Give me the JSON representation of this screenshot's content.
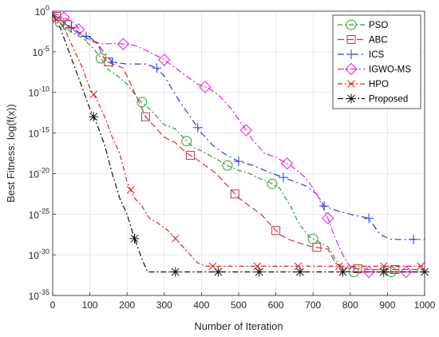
{
  "chart_data": {
    "type": "line",
    "title": "",
    "xlabel": "Number of Iteration",
    "ylabel": "Best Fitness: log(f(x))",
    "xlim": [
      0,
      1000
    ],
    "ylim_log10": [
      -35,
      0
    ],
    "y_scale": "log",
    "grid": true,
    "legend_position": "top-right",
    "x_ticks": [
      {
        "value": 0,
        "label": "0"
      },
      {
        "value": 100,
        "label": "100"
      },
      {
        "value": 200,
        "label": "200"
      },
      {
        "value": 300,
        "label": "300"
      },
      {
        "value": 400,
        "label": "400"
      },
      {
        "value": 500,
        "label": "500"
      },
      {
        "value": 600,
        "label": "600"
      },
      {
        "value": 700,
        "label": "700"
      },
      {
        "value": 800,
        "label": "800"
      },
      {
        "value": 900,
        "label": "900"
      },
      {
        "value": 1000,
        "label": "1000"
      }
    ],
    "y_ticks": [
      {
        "exp": 0,
        "base": "10",
        "sup": "0"
      },
      {
        "exp": -5,
        "base": "10",
        "sup": "-5"
      },
      {
        "exp": -10,
        "base": "10",
        "sup": "-10"
      },
      {
        "exp": -15,
        "base": "10",
        "sup": "-15"
      },
      {
        "exp": -20,
        "base": "10",
        "sup": "-20"
      },
      {
        "exp": -25,
        "base": "10",
        "sup": "-25"
      },
      {
        "exp": -30,
        "base": "10",
        "sup": "-30"
      },
      {
        "exp": -35,
        "base": "10",
        "sup": "-35"
      }
    ],
    "series": [
      {
        "name": "PSO",
        "color": "#2ca02c",
        "dash": "6,3,2,3",
        "marker": "circle",
        "points": [
          [
            0,
            -0.3
          ],
          [
            20,
            -1.4
          ],
          [
            50,
            -2.6
          ],
          [
            80,
            -3.3
          ],
          [
            110,
            -4.6
          ],
          [
            130,
            -5.8
          ],
          [
            150,
            -7.2
          ],
          [
            170,
            -7.8
          ],
          [
            200,
            -9.0
          ],
          [
            230,
            -10.8
          ],
          [
            260,
            -12.0
          ],
          [
            280,
            -13.0
          ],
          [
            300,
            -14.0
          ],
          [
            330,
            -14.5
          ],
          [
            360,
            -16.0
          ],
          [
            380,
            -16.8
          ],
          [
            400,
            -17.2
          ],
          [
            440,
            -18.2
          ],
          [
            470,
            -19.0
          ],
          [
            500,
            -19.6
          ],
          [
            530,
            -20.0
          ],
          [
            550,
            -20.5
          ],
          [
            580,
            -21.0
          ],
          [
            610,
            -21.8
          ],
          [
            640,
            -24.0
          ],
          [
            660,
            -26.0
          ],
          [
            690,
            -27.8
          ],
          [
            720,
            -28.5
          ],
          [
            740,
            -29.0
          ],
          [
            760,
            -30.5
          ],
          [
            780,
            -31.8
          ],
          [
            800,
            -32.1
          ],
          [
            850,
            -32.1
          ],
          [
            900,
            -32.1
          ],
          [
            1000,
            -32.1
          ]
        ],
        "marker_x": [
          20,
          130,
          240,
          360,
          470,
          590,
          700,
          810,
          910
        ]
      },
      {
        "name": "ABC",
        "color": "#c8324a",
        "dash": "8,4",
        "marker": "square",
        "points": [
          [
            0,
            -0.3
          ],
          [
            20,
            -1.0
          ],
          [
            50,
            -2.0
          ],
          [
            80,
            -3.0
          ],
          [
            100,
            -3.5
          ],
          [
            120,
            -4.0
          ],
          [
            140,
            -6.0
          ],
          [
            160,
            -6.5
          ],
          [
            190,
            -7.0
          ],
          [
            210,
            -9.0
          ],
          [
            230,
            -11.0
          ],
          [
            250,
            -13.0
          ],
          [
            270,
            -14.0
          ],
          [
            300,
            -15.5
          ],
          [
            330,
            -16.2
          ],
          [
            360,
            -17.5
          ],
          [
            380,
            -18.0
          ],
          [
            410,
            -19.0
          ],
          [
            440,
            -20.0
          ],
          [
            470,
            -21.5
          ],
          [
            500,
            -23.0
          ],
          [
            530,
            -24.0
          ],
          [
            560,
            -25.0
          ],
          [
            590,
            -26.5
          ],
          [
            610,
            -27.5
          ],
          [
            640,
            -28.2
          ],
          [
            680,
            -28.8
          ],
          [
            700,
            -29.0
          ],
          [
            740,
            -29.3
          ],
          [
            760,
            -31.0
          ],
          [
            780,
            -31.6
          ],
          [
            850,
            -31.8
          ],
          [
            1000,
            -31.8
          ]
        ],
        "marker_x": [
          10,
          40,
          150,
          250,
          370,
          490,
          600,
          710,
          820,
          920
        ]
      },
      {
        "name": "ICS",
        "color": "#1f3fd6",
        "dash": "8,4,2,4",
        "marker": "plus",
        "points": [
          [
            0,
            -0.4
          ],
          [
            20,
            -1.0
          ],
          [
            40,
            -1.8
          ],
          [
            60,
            -2.2
          ],
          [
            80,
            -3.0
          ],
          [
            100,
            -3.2
          ],
          [
            120,
            -4.0
          ],
          [
            160,
            -6.3
          ],
          [
            200,
            -6.5
          ],
          [
            250,
            -6.5
          ],
          [
            280,
            -7.0
          ],
          [
            300,
            -8.0
          ],
          [
            320,
            -9.5
          ],
          [
            340,
            -11.0
          ],
          [
            370,
            -13.0
          ],
          [
            400,
            -15.0
          ],
          [
            430,
            -16.5
          ],
          [
            460,
            -17.5
          ],
          [
            500,
            -18.5
          ],
          [
            540,
            -19.0
          ],
          [
            580,
            -19.8
          ],
          [
            610,
            -20.3
          ],
          [
            640,
            -20.8
          ],
          [
            680,
            -21.5
          ],
          [
            710,
            -22.5
          ],
          [
            730,
            -24.0
          ],
          [
            760,
            -24.5
          ],
          [
            800,
            -25.0
          ],
          [
            850,
            -25.5
          ],
          [
            880,
            -27.5
          ],
          [
            910,
            -28.1
          ],
          [
            1000,
            -28.1
          ]
        ],
        "marker_x": [
          50,
          90,
          160,
          280,
          390,
          500,
          620,
          730,
          850,
          970
        ]
      },
      {
        "name": "IGWO-MS",
        "color": "#e020e0",
        "dash": "8,3,2,3",
        "marker": "diamond",
        "points": [
          [
            0,
            -0.2
          ],
          [
            30,
            -0.8
          ],
          [
            60,
            -1.5
          ],
          [
            80,
            -3.0
          ],
          [
            100,
            -3.5
          ],
          [
            130,
            -4.0
          ],
          [
            180,
            -4.0
          ],
          [
            220,
            -4.2
          ],
          [
            260,
            -5.0
          ],
          [
            300,
            -6.0
          ],
          [
            330,
            -7.0
          ],
          [
            360,
            -8.0
          ],
          [
            390,
            -9.0
          ],
          [
            420,
            -9.5
          ],
          [
            450,
            -10.5
          ],
          [
            480,
            -12.0
          ],
          [
            510,
            -14.0
          ],
          [
            540,
            -16.0
          ],
          [
            570,
            -17.5
          ],
          [
            600,
            -18.0
          ],
          [
            640,
            -19.0
          ],
          [
            680,
            -20.5
          ],
          [
            710,
            -22.5
          ],
          [
            740,
            -25.5
          ],
          [
            760,
            -28.0
          ],
          [
            780,
            -30.0
          ],
          [
            800,
            -31.5
          ],
          [
            820,
            -32.1
          ],
          [
            900,
            -32.1
          ],
          [
            1000,
            -32.1
          ]
        ],
        "marker_x": [
          30,
          70,
          190,
          300,
          410,
          520,
          630,
          740,
          850,
          950
        ]
      },
      {
        "name": "HPO",
        "color": "#e02020",
        "dash": "6,3,2,3",
        "marker": "x",
        "points": [
          [
            0,
            -0.5
          ],
          [
            30,
            -2.0
          ],
          [
            60,
            -5.0
          ],
          [
            80,
            -7.0
          ],
          [
            100,
            -9.5
          ],
          [
            120,
            -11.0
          ],
          [
            140,
            -13.0
          ],
          [
            160,
            -15.5
          ],
          [
            180,
            -17.5
          ],
          [
            200,
            -21.0
          ],
          [
            220,
            -23.0
          ],
          [
            240,
            -24.0
          ],
          [
            260,
            -25.5
          ],
          [
            280,
            -26.0
          ],
          [
            310,
            -27.0
          ],
          [
            340,
            -28.5
          ],
          [
            370,
            -30.0
          ],
          [
            390,
            -31.0
          ],
          [
            410,
            -31.4
          ],
          [
            500,
            -31.4
          ],
          [
            700,
            -31.4
          ],
          [
            1000,
            -31.4
          ]
        ],
        "marker_x": [
          10,
          110,
          210,
          330,
          430,
          550,
          660,
          770,
          890,
          990
        ]
      },
      {
        "name": "Proposed",
        "color": "#111111",
        "dash": "7,3,2,3",
        "marker": "star",
        "points": [
          [
            0,
            -0.5
          ],
          [
            20,
            -2.0
          ],
          [
            40,
            -4.5
          ],
          [
            60,
            -7.0
          ],
          [
            80,
            -9.5
          ],
          [
            100,
            -12.0
          ],
          [
            120,
            -14.0
          ],
          [
            140,
            -16.5
          ],
          [
            160,
            -20.0
          ],
          [
            180,
            -23.0
          ],
          [
            200,
            -25.0
          ],
          [
            220,
            -28.0
          ],
          [
            240,
            -30.5
          ],
          [
            255,
            -32.1
          ],
          [
            300,
            -32.1
          ],
          [
            500,
            -32.1
          ],
          [
            1000,
            -32.1
          ]
        ],
        "marker_x": [
          110,
          220,
          330,
          445,
          555,
          665,
          780,
          890,
          1000
        ]
      }
    ]
  }
}
